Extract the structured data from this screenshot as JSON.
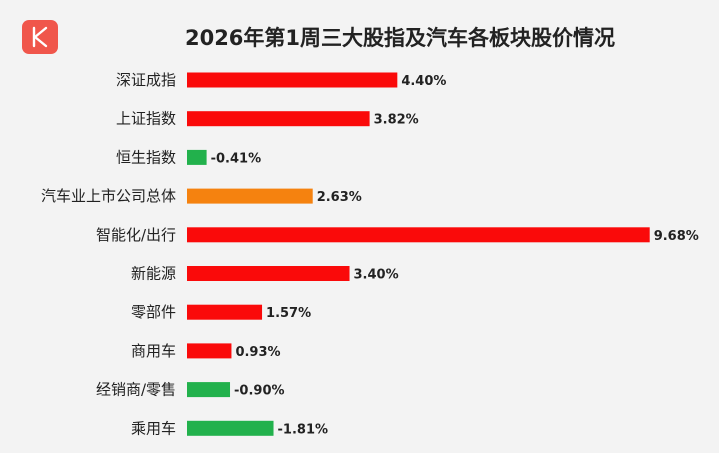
{
  "chart_data": {
    "type": "bar",
    "orientation": "horizontal",
    "title": "2026年第1周三大股指及汽车各板块股价情况",
    "categories": [
      "深证成指",
      "上证指数",
      "恒生指数",
      "汽车业上市公司总体",
      "智能化/出行",
      "新能源",
      "零部件",
      "商用车",
      "经销商/零售",
      "乘用车"
    ],
    "values": [
      4.4,
      3.82,
      -0.41,
      2.63,
      9.68,
      3.4,
      1.57,
      0.93,
      -0.9,
      -1.81
    ],
    "value_labels": [
      "4.40%",
      "3.82%",
      "-0.41%",
      "2.63%",
      "9.68%",
      "3.40%",
      "1.57%",
      "0.93%",
      "-0.90%",
      "-1.81%"
    ],
    "colors": [
      "#fa0a0a",
      "#fa0a0a",
      "#22b14c",
      "#f5820f",
      "#fa0a0a",
      "#fa0a0a",
      "#fa0a0a",
      "#fa0a0a",
      "#22b14c",
      "#22b14c"
    ],
    "xlabel": "",
    "ylabel": "",
    "grid": false,
    "legend": "none"
  },
  "header": {
    "logo_icon": "k-logo-icon"
  }
}
